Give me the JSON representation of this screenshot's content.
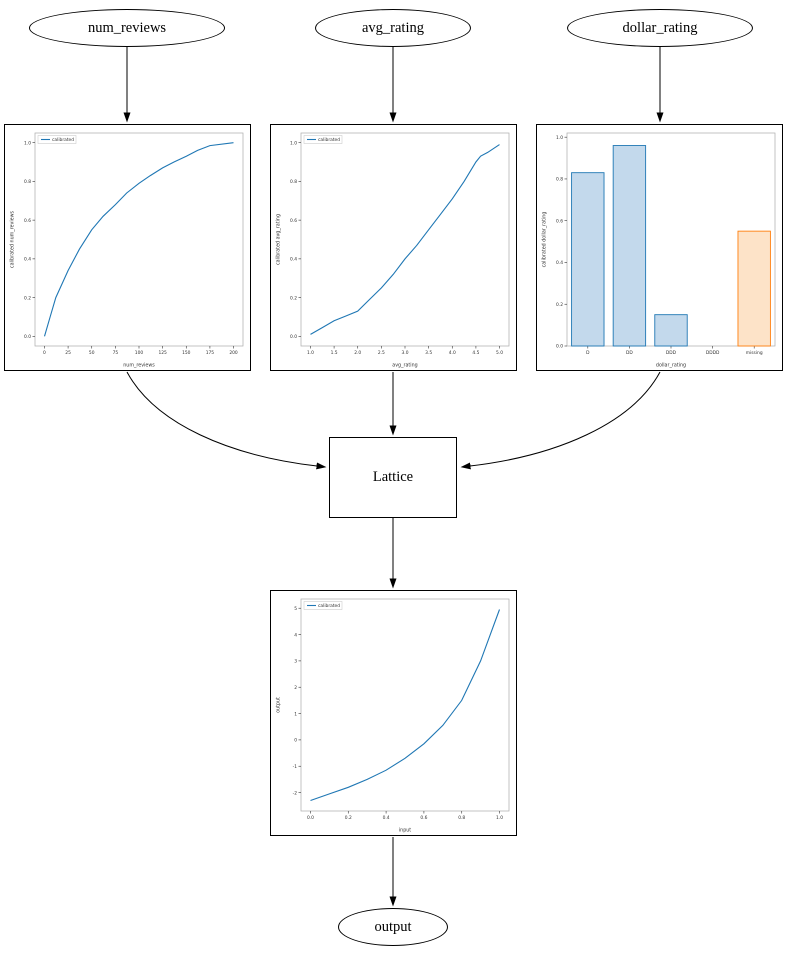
{
  "nodes": {
    "num_reviews": "num_reviews",
    "avg_rating": "avg_rating",
    "dollar_rating": "dollar_rating",
    "lattice": "Lattice",
    "output": "output"
  },
  "colors": {
    "line_blue": "#1f77b4",
    "bar_blue_fill": "#c3d9ec",
    "bar_blue_edge": "#1f77b4",
    "bar_orange_fill": "#fde3c8",
    "bar_orange_edge": "#ff7f0e",
    "edge_black": "#000000"
  },
  "chart_data": [
    {
      "id": "num_reviews",
      "type": "line",
      "title": "",
      "xlabel": "num_reviews",
      "ylabel": "calibrated num_reviews",
      "legend": [
        "calibrated"
      ],
      "legend_position": "upper left",
      "color": "#1f77b4",
      "xlim": [
        -10,
        210
      ],
      "ylim": [
        -0.05,
        1.05
      ],
      "x": [
        0,
        6,
        12,
        25,
        37,
        50,
        62,
        75,
        87,
        100,
        112,
        125,
        137,
        150,
        162,
        175,
        200
      ],
      "y": [
        0.0,
        0.1,
        0.2,
        0.34,
        0.45,
        0.55,
        0.62,
        0.68,
        0.74,
        0.79,
        0.83,
        0.87,
        0.9,
        0.93,
        0.96,
        0.985,
        1.0
      ],
      "xticks": [
        0,
        25,
        50,
        75,
        100,
        125,
        150,
        175,
        200
      ],
      "xtick_labels": [
        "0",
        "25",
        "50",
        "75",
        "100",
        "125",
        "150",
        "175",
        "200"
      ],
      "yticks": [
        0.0,
        0.2,
        0.4,
        0.6,
        0.8,
        1.0
      ],
      "ytick_labels": [
        "0.0",
        "0.2",
        "0.4",
        "0.6",
        "0.8",
        "1.0"
      ]
    },
    {
      "id": "avg_rating",
      "type": "line",
      "title": "",
      "xlabel": "avg_rating",
      "ylabel": "calibrated avg_rating",
      "legend": [
        "calibrated"
      ],
      "legend_position": "upper left",
      "color": "#1f77b4",
      "xlim": [
        0.8,
        5.2
      ],
      "ylim": [
        -0.05,
        1.05
      ],
      "x": [
        1.0,
        1.25,
        1.5,
        1.75,
        2.0,
        2.25,
        2.5,
        2.75,
        3.0,
        3.25,
        3.5,
        3.75,
        4.0,
        4.25,
        4.5,
        4.6,
        4.75,
        5.0
      ],
      "y": [
        0.01,
        0.045,
        0.08,
        0.105,
        0.13,
        0.19,
        0.25,
        0.32,
        0.4,
        0.47,
        0.55,
        0.63,
        0.71,
        0.8,
        0.9,
        0.93,
        0.95,
        0.99
      ],
      "xticks": [
        1.0,
        1.5,
        2.0,
        2.5,
        3.0,
        3.5,
        4.0,
        4.5,
        5.0
      ],
      "xtick_labels": [
        "1.0",
        "1.5",
        "2.0",
        "2.5",
        "3.0",
        "3.5",
        "4.0",
        "4.5",
        "5.0"
      ],
      "yticks": [
        0.0,
        0.2,
        0.4,
        0.6,
        0.8,
        1.0
      ],
      "ytick_labels": [
        "0.0",
        "0.2",
        "0.4",
        "0.6",
        "0.8",
        "1.0"
      ]
    },
    {
      "id": "dollar_rating",
      "type": "bar",
      "title": "",
      "xlabel": "dollar_rating",
      "ylabel": "calibrated dollar_rating",
      "legend": [],
      "categories": [
        "D",
        "DD",
        "DDD",
        "DDDD",
        "missing"
      ],
      "values": [
        0.83,
        0.96,
        0.15,
        0.0,
        0.55
      ],
      "bar_fills": [
        "#c3d9ec",
        "#c3d9ec",
        "#c3d9ec",
        "#c3d9ec",
        "#fde3c8"
      ],
      "bar_edges": [
        "#1f77b4",
        "#1f77b4",
        "#1f77b4",
        "#1f77b4",
        "#ff7f0e"
      ],
      "ylim": [
        0,
        1.02
      ],
      "yticks": [
        0.0,
        0.2,
        0.4,
        0.6,
        0.8,
        1.0
      ],
      "ytick_labels": [
        "0.0",
        "0.2",
        "0.4",
        "0.6",
        "0.8",
        "1.0"
      ]
    },
    {
      "id": "output",
      "type": "line",
      "title": "",
      "xlabel": "input",
      "ylabel": "output",
      "legend": [
        "calibrated"
      ],
      "legend_position": "upper left",
      "color": "#1f77b4",
      "xlim": [
        -0.05,
        1.05
      ],
      "ylim": [
        -2.7,
        5.35
      ],
      "x": [
        0.0,
        0.1,
        0.2,
        0.3,
        0.4,
        0.5,
        0.6,
        0.7,
        0.8,
        0.9,
        1.0
      ],
      "y": [
        -2.3,
        -2.05,
        -1.8,
        -1.5,
        -1.15,
        -0.7,
        -0.15,
        0.55,
        1.5,
        3.0,
        4.95
      ],
      "xticks": [
        0.0,
        0.2,
        0.4,
        0.6,
        0.8,
        1.0
      ],
      "xtick_labels": [
        "0.0",
        "0.2",
        "0.4",
        "0.6",
        "0.8",
        "1.0"
      ],
      "yticks": [
        -2,
        -1,
        0,
        1,
        2,
        3,
        4,
        5
      ],
      "ytick_labels": [
        "-2",
        "-1",
        "0",
        "1",
        "2",
        "3",
        "4",
        "5"
      ]
    }
  ]
}
